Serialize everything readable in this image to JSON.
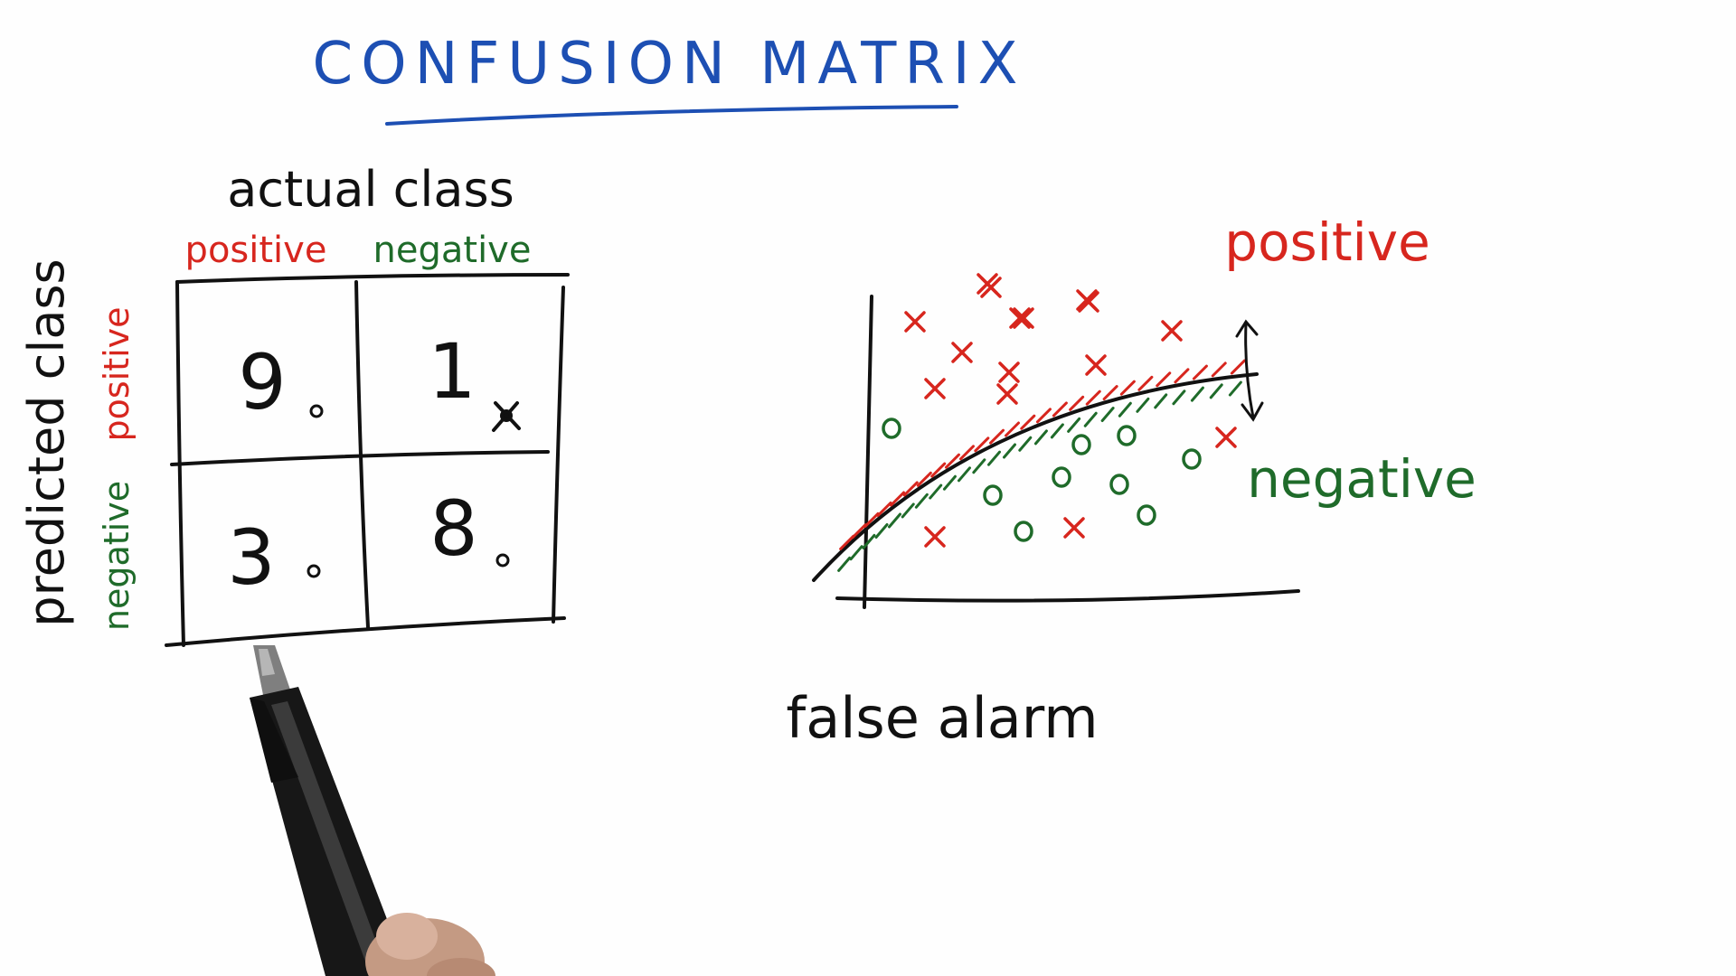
{
  "lesson": {
    "title": "CONFUSION MATRIX"
  },
  "matrix": {
    "column_header": "actual class",
    "row_header": "predicted class",
    "columns": [
      {
        "label": "positive",
        "color": "#d7261e"
      },
      {
        "label": "negative",
        "color": "#1f6b2a"
      }
    ],
    "rows": [
      {
        "label": "positive",
        "color": "#d7261e"
      },
      {
        "label": "negative",
        "color": "#1f6b2a"
      }
    ],
    "cells": [
      {
        "row": "positive",
        "col": "positive",
        "value": "9"
      },
      {
        "row": "positive",
        "col": "negative",
        "value": "1"
      },
      {
        "row": "negative",
        "col": "positive",
        "value": "3"
      },
      {
        "row": "negative",
        "col": "negative",
        "value": "8"
      }
    ]
  },
  "scatter": {
    "region_labels": {
      "positive": "positive",
      "negative": "negative"
    },
    "annotation": "false alarm",
    "marker_colors": {
      "positive": "#d7261e",
      "negative": "#1f6b2a",
      "ink": "#111111",
      "title": "#1d4fb3"
    }
  }
}
